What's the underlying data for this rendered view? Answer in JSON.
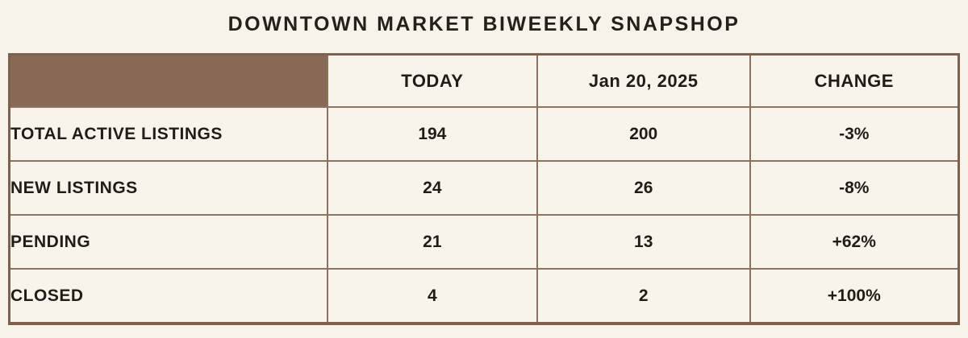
{
  "chart_data": {
    "type": "table",
    "title": "DOWNTOWN MARKET BIWEEKLY SNAPSHOP",
    "columns": [
      "",
      "TODAY",
      "Jan 20, 2025",
      "CHANGE"
    ],
    "rows": [
      [
        "TOTAL ACTIVE LISTINGS",
        "194",
        "200",
        "-3%"
      ],
      [
        "NEW LISTINGS",
        "24",
        "26",
        "-8%"
      ],
      [
        "PENDING",
        "21",
        "13",
        "+62%"
      ],
      [
        "CLOSED",
        "4",
        "2",
        "+100%"
      ]
    ]
  },
  "colors": {
    "page_background": "#f7f3ea",
    "cell_background": "#f8f4ec",
    "corner_cell_brown": "#866a56",
    "grid_border": "#8d7260",
    "outer_border": "#7c614c",
    "text": "#201d18"
  }
}
